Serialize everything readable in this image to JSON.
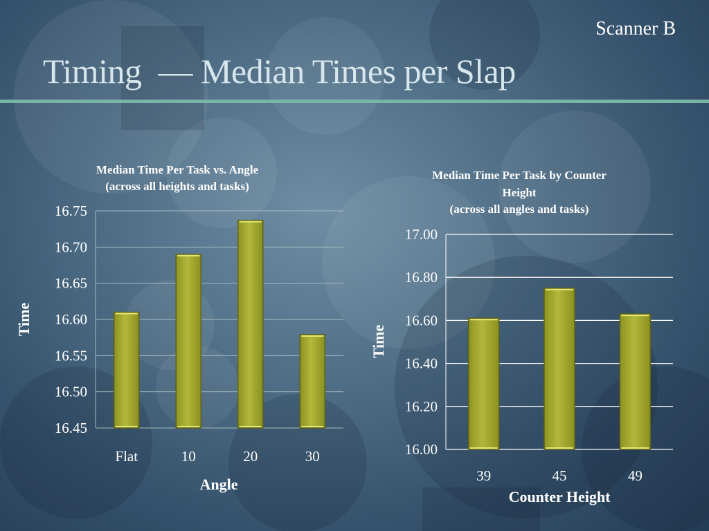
{
  "corner_label": "Scanner B",
  "slide_title": "Timing  — Median Times per Slap",
  "colors": {
    "bar_fill": "#a7ad30",
    "bar_edge": "#5e6214",
    "bar_highlight": "#e4e97a",
    "rule": "#79b4a8"
  },
  "chart_data": [
    {
      "type": "bar",
      "title_lines": [
        "Median Time Per Task vs. Angle",
        "(across all heights and tasks)"
      ],
      "categories": [
        "Flat",
        "10",
        "20",
        "30"
      ],
      "values": [
        16.61,
        16.69,
        16.737,
        16.579
      ],
      "xlabel": "Angle",
      "ylabel": "Time",
      "ylim": [
        16.45,
        16.75
      ],
      "yticks": [
        "16.75",
        "16.70",
        "16.65",
        "16.60",
        "16.55",
        "16.50",
        "16.45"
      ],
      "grid": true
    },
    {
      "type": "bar",
      "title_lines": [
        "Median Time Per Task by Counter",
        "Height",
        "(across all angles and tasks)"
      ],
      "categories": [
        "39",
        "45",
        "49"
      ],
      "values": [
        16.61,
        16.75,
        16.63
      ],
      "xlabel": "Counter Height",
      "ylabel": "Time",
      "ylim": [
        16.0,
        17.0
      ],
      "yticks": [
        "17.00",
        "16.80",
        "16.60",
        "16.40",
        "16.20",
        "16.00"
      ],
      "grid": true
    }
  ]
}
